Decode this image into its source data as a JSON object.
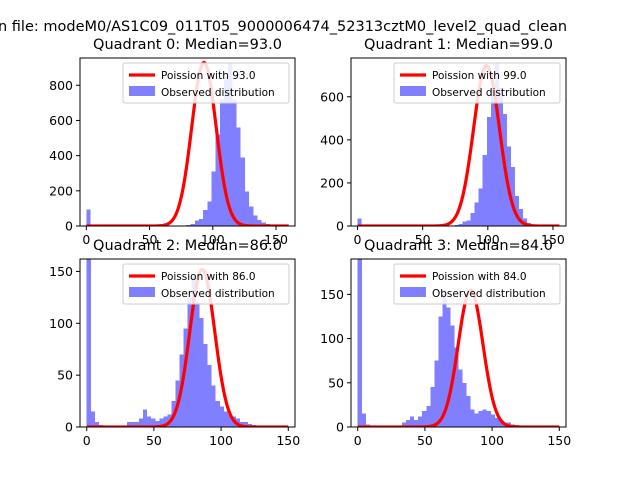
{
  "figure": {
    "suptitle": "n file: modeM0/AS1C09_011T05_9000006474_52313cztM0_level2_quad_clean"
  },
  "colors": {
    "bar": "#7f7fff",
    "fit": "#ff0000",
    "axis": "#000000"
  },
  "chart_data": [
    {
      "type": "bar",
      "title": "Quadrant 0: Median=93.0",
      "xlim": [
        -5,
        165
      ],
      "ylim": [
        0,
        955
      ],
      "xticks": [
        0,
        50,
        100,
        150
      ],
      "yticks": [
        0,
        200,
        400,
        600,
        800
      ],
      "bin_start": 0,
      "bin_width": 3.3,
      "counts": [
        95,
        5,
        0,
        0,
        0,
        0,
        0,
        0,
        0,
        0,
        0,
        0,
        0,
        0,
        0,
        0,
        0,
        0,
        0,
        0,
        0,
        0,
        0,
        0,
        5,
        10,
        30,
        40,
        90,
        140,
        310,
        520,
        720,
        850,
        930,
        720,
        560,
        390,
        195,
        110,
        60,
        35,
        20,
        10,
        5,
        0,
        0,
        0,
        0,
        0
      ],
      "fit_mean": 93.0,
      "fit_scale": 930,
      "legend": [
        "Poission with 93.0",
        "Observed distribution"
      ]
    },
    {
      "type": "bar",
      "title": "Quadrant 1: Median=99.0",
      "xlim": [
        -5,
        160
      ],
      "ylim": [
        0,
        780
      ],
      "xticks": [
        0,
        50,
        100,
        150
      ],
      "yticks": [
        0,
        200,
        400,
        600
      ],
      "bin_start": 0,
      "bin_width": 3.1,
      "counts": [
        35,
        5,
        0,
        0,
        0,
        0,
        0,
        0,
        0,
        0,
        0,
        0,
        0,
        0,
        0,
        0,
        0,
        0,
        0,
        0,
        0,
        0,
        0,
        0,
        5,
        10,
        20,
        25,
        60,
        110,
        175,
        330,
        505,
        640,
        755,
        640,
        520,
        370,
        275,
        140,
        80,
        35,
        15,
        5,
        0,
        0,
        0,
        0,
        0,
        0
      ],
      "fit_mean": 99.0,
      "fit_scale": 745,
      "legend": [
        "Poission with 99.0",
        "Observed distribution"
      ]
    },
    {
      "type": "bar",
      "title": "Quadrant 2: Median=86.0",
      "xlim": [
        -5,
        155
      ],
      "ylim": [
        0,
        162
      ],
      "xticks": [
        0,
        50,
        100,
        150
      ],
      "yticks": [
        0,
        50,
        100,
        150
      ],
      "bin_start": 0,
      "bin_width": 3.0,
      "counts": [
        162,
        15,
        5,
        2,
        0,
        0,
        0,
        0,
        0,
        0,
        5,
        5,
        5,
        8,
        17,
        10,
        8,
        6,
        8,
        10,
        12,
        25,
        45,
        70,
        95,
        125,
        145,
        120,
        105,
        80,
        60,
        40,
        25,
        20,
        15,
        12,
        10,
        8,
        5,
        5,
        3,
        2,
        1,
        0,
        0,
        0,
        0,
        0,
        0,
        0
      ],
      "fit_mean": 86.0,
      "fit_scale": 152,
      "legend": [
        "Poission with 86.0",
        "Observed distribution"
      ]
    },
    {
      "type": "bar",
      "title": "Quadrant 3: Median=84.0",
      "xlim": [
        -5,
        155
      ],
      "ylim": [
        0,
        190
      ],
      "xticks": [
        0,
        50,
        100,
        150
      ],
      "yticks": [
        0,
        50,
        100,
        150
      ],
      "bin_start": 0,
      "bin_width": 3.0,
      "counts": [
        190,
        15,
        3,
        0,
        0,
        0,
        0,
        0,
        0,
        0,
        0,
        5,
        8,
        12,
        8,
        12,
        18,
        24,
        45,
        75,
        125,
        155,
        135,
        115,
        90,
        65,
        50,
        35,
        20,
        15,
        18,
        20,
        18,
        14,
        10,
        8,
        5,
        5,
        3,
        2,
        1,
        0,
        0,
        0,
        0,
        0,
        0,
        0,
        0,
        0
      ],
      "fit_mean": 84.0,
      "fit_scale": 155,
      "legend": [
        "Poission with 84.0",
        "Observed distribution"
      ]
    }
  ]
}
